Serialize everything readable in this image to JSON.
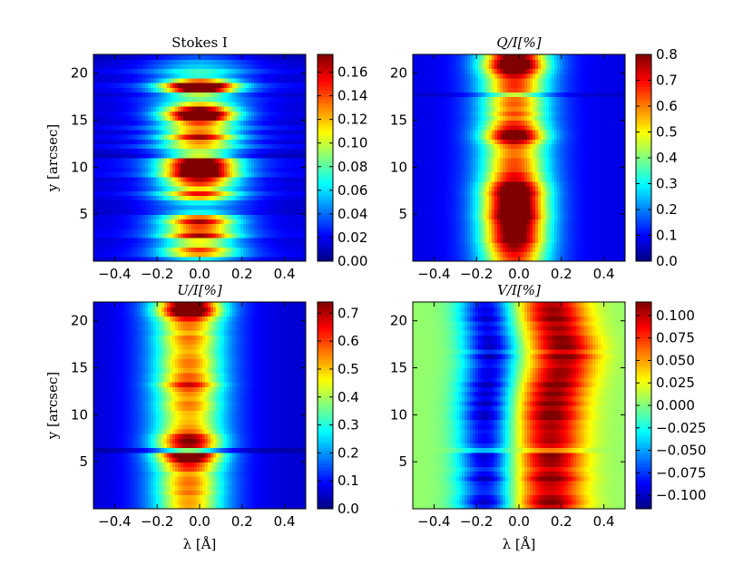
{
  "chart_data": [
    {
      "type": "heatmap",
      "title": "Stokes I",
      "xlabel": "",
      "ylabel": "y [arcsec]",
      "colormap": "jet",
      "xlim": [
        -0.5,
        0.5
      ],
      "ylim": [
        0.0,
        22.0
      ],
      "xticks": [
        -0.4,
        -0.2,
        0.0,
        0.2,
        0.4
      ],
      "xtick_labels": [
        "−0.4",
        "−0.2",
        "0.0",
        "0.2",
        "0.4"
      ],
      "yticks": [
        5,
        10,
        15,
        20
      ],
      "ytick_labels": [
        "5",
        "10",
        "15",
        "20"
      ],
      "colorbar": {
        "min": 0.0,
        "max": 0.175,
        "ticks": [
          0.0,
          0.02,
          0.04,
          0.06,
          0.08,
          0.1,
          0.12,
          0.14,
          0.16
        ],
        "tick_labels": [
          "0.00",
          "0.02",
          "0.04",
          "0.06",
          "0.08",
          "0.10",
          "0.12",
          "0.14",
          "0.16"
        ]
      }
    },
    {
      "type": "heatmap",
      "title": "Q/I[%]",
      "xlabel": "",
      "ylabel": "",
      "colormap": "jet",
      "xlim": [
        -0.5,
        0.5
      ],
      "ylim": [
        0.0,
        22.0
      ],
      "xticks": [
        -0.4,
        -0.2,
        0.0,
        0.2,
        0.4
      ],
      "xtick_labels": [
        "−0.4",
        "−0.2",
        "0.0",
        "0.2",
        "0.4"
      ],
      "yticks": [
        5,
        10,
        15,
        20
      ],
      "ytick_labels": [
        "5",
        "10",
        "15",
        "20"
      ],
      "colorbar": {
        "min": 0.0,
        "max": 0.8,
        "ticks": [
          0.0,
          0.1,
          0.2,
          0.3,
          0.4,
          0.5,
          0.6,
          0.7,
          0.8
        ],
        "tick_labels": [
          "0.0",
          "0.1",
          "0.2",
          "0.3",
          "0.4",
          "0.5",
          "0.6",
          "0.7",
          "0.8"
        ]
      }
    },
    {
      "type": "heatmap",
      "title": "U/I[%]",
      "xlabel": "λ [Å]",
      "ylabel": "y [arcsec]",
      "colormap": "jet",
      "xlim": [
        -0.5,
        0.5
      ],
      "ylim": [
        0.0,
        22.0
      ],
      "xticks": [
        -0.4,
        -0.2,
        0.0,
        0.2,
        0.4
      ],
      "xtick_labels": [
        "−0.4",
        "−0.2",
        "0.0",
        "0.2",
        "0.4"
      ],
      "yticks": [
        5,
        10,
        15,
        20
      ],
      "ytick_labels": [
        "5",
        "10",
        "15",
        "20"
      ],
      "colorbar": {
        "min": 0.0,
        "max": 0.74,
        "ticks": [
          0.0,
          0.1,
          0.2,
          0.3,
          0.4,
          0.5,
          0.6,
          0.7
        ],
        "tick_labels": [
          "0.0",
          "0.1",
          "0.2",
          "0.3",
          "0.4",
          "0.5",
          "0.6",
          "0.7"
        ]
      }
    },
    {
      "type": "heatmap",
      "title": "V/I[%]",
      "xlabel": "λ [Å]",
      "ylabel": "",
      "colormap": "jet",
      "xlim": [
        -0.5,
        0.5
      ],
      "ylim": [
        0.0,
        22.0
      ],
      "xticks": [
        -0.4,
        -0.2,
        0.0,
        0.2,
        0.4
      ],
      "xtick_labels": [
        "−0.4",
        "−0.2",
        "0.0",
        "0.2",
        "0.4"
      ],
      "yticks": [
        5,
        10,
        15,
        20
      ],
      "ytick_labels": [
        "5",
        "10",
        "15",
        "20"
      ],
      "colorbar": {
        "min": -0.115,
        "max": 0.115,
        "ticks": [
          -0.1,
          -0.075,
          -0.05,
          -0.025,
          0.0,
          0.025,
          0.05,
          0.075,
          0.1
        ],
        "tick_labels": [
          "−0.100",
          "−0.075",
          "−0.050",
          "−0.025",
          "0.000",
          "0.025",
          "0.050",
          "0.075",
          "0.100"
        ]
      }
    }
  ]
}
